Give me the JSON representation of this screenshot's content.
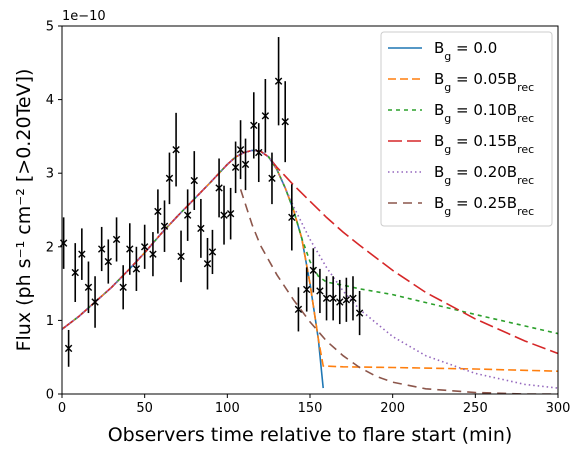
{
  "chart_data": {
    "type": "line",
    "title": "",
    "xlabel": "Observers time relative to flare start (min)",
    "ylabel": "Flux (ph s⁻¹ cm⁻² [>0.20TeV])",
    "y_scale_label": "1e−10",
    "xlim": [
      0,
      300
    ],
    "ylim": [
      0,
      5
    ],
    "x_ticks": [
      0,
      50,
      100,
      150,
      200,
      250,
      300
    ],
    "y_ticks": [
      0,
      1,
      2,
      3,
      4,
      5
    ],
    "x_tick_labels": [
      "0",
      "50",
      "100",
      "150",
      "200",
      "250",
      "300"
    ],
    "y_tick_labels": [
      "0",
      "1",
      "2",
      "3",
      "4",
      "5"
    ],
    "grid": false,
    "legend_position": "top-right",
    "series": [
      {
        "name": "B_g = 0.0",
        "legend_html": "B<tspan baseline-shift='sub' font-size='11'>g</tspan> = 0.0",
        "color": "#1f77b4",
        "dash": "solid",
        "x": [
          0,
          10,
          20,
          30,
          40,
          50,
          60,
          70,
          80,
          90,
          100,
          105,
          110,
          115,
          120,
          125,
          130,
          135,
          140,
          145,
          150,
          155,
          158
        ],
        "y": [
          0.88,
          1.05,
          1.25,
          1.45,
          1.68,
          1.92,
          2.18,
          2.42,
          2.65,
          2.88,
          3.12,
          3.22,
          3.28,
          3.31,
          3.3,
          3.22,
          3.05,
          2.8,
          2.5,
          2.12,
          1.5,
          0.75,
          0.08
        ]
      },
      {
        "name": "B_g = 0.05B_rec",
        "legend_html": "B<tspan baseline-shift='sub' font-size='11'>g</tspan> = 0.05B<tspan baseline-shift='sub' font-size='11'>rec</tspan>",
        "color": "#ff7f0e",
        "dash": "8,4",
        "x": [
          0,
          10,
          20,
          30,
          40,
          50,
          60,
          70,
          80,
          90,
          100,
          105,
          110,
          115,
          120,
          125,
          130,
          135,
          140,
          145,
          150,
          155,
          158,
          170,
          200,
          250,
          300
        ],
        "y": [
          0.88,
          1.05,
          1.25,
          1.45,
          1.68,
          1.92,
          2.18,
          2.42,
          2.65,
          2.88,
          3.12,
          3.22,
          3.28,
          3.31,
          3.3,
          3.22,
          3.05,
          2.8,
          2.5,
          2.12,
          1.5,
          0.75,
          0.38,
          0.37,
          0.36,
          0.34,
          0.31
        ]
      },
      {
        "name": "B_g = 0.10B_rec",
        "legend_html": "B<tspan baseline-shift='sub' font-size='11'>g</tspan> = 0.10B<tspan baseline-shift='sub' font-size='11'>rec</tspan>",
        "color": "#2ca02c",
        "dash": "4,4",
        "x": [
          0,
          10,
          20,
          30,
          40,
          50,
          60,
          70,
          80,
          90,
          100,
          105,
          110,
          115,
          120,
          125,
          130,
          135,
          140,
          145,
          150,
          155,
          160,
          170,
          180,
          200,
          250,
          300
        ],
        "y": [
          0.88,
          1.05,
          1.25,
          1.45,
          1.68,
          1.92,
          2.18,
          2.42,
          2.65,
          2.88,
          3.12,
          3.22,
          3.28,
          3.31,
          3.3,
          3.22,
          3.05,
          2.8,
          2.5,
          2.12,
          1.8,
          1.6,
          1.52,
          1.48,
          1.43,
          1.35,
          1.08,
          0.82
        ]
      },
      {
        "name": "B_g = 0.15B_rec",
        "legend_html": "B<tspan baseline-shift='sub' font-size='11'>g</tspan> = 0.15B<tspan baseline-shift='sub' font-size='11'>rec</tspan>",
        "color": "#d62728",
        "dash": "14,5",
        "x": [
          0,
          10,
          20,
          30,
          40,
          50,
          60,
          70,
          80,
          90,
          100,
          105,
          110,
          115,
          120,
          125,
          130,
          135,
          140,
          150,
          160,
          170,
          180,
          200,
          220,
          250,
          280,
          300
        ],
        "y": [
          0.88,
          1.05,
          1.25,
          1.45,
          1.68,
          1.92,
          2.18,
          2.42,
          2.65,
          2.88,
          3.12,
          3.22,
          3.28,
          3.31,
          3.3,
          3.22,
          3.08,
          2.96,
          2.84,
          2.62,
          2.4,
          2.2,
          2.02,
          1.68,
          1.38,
          1.02,
          0.72,
          0.55
        ]
      },
      {
        "name": "B_g = 0.20B_rec",
        "legend_html": "B<tspan baseline-shift='sub' font-size='11'>g</tspan> = 0.20B<tspan baseline-shift='sub' font-size='11'>rec</tspan>",
        "color": "#9467bd",
        "dash": "1.5,3",
        "x": [
          0,
          10,
          20,
          30,
          40,
          50,
          60,
          70,
          80,
          90,
          100,
          105,
          110,
          115,
          120,
          125,
          130,
          135,
          140,
          150,
          160,
          170,
          180,
          200,
          220,
          250,
          280,
          300
        ],
        "y": [
          0.88,
          1.05,
          1.25,
          1.45,
          1.68,
          1.92,
          2.18,
          2.42,
          2.65,
          2.88,
          3.12,
          3.22,
          3.28,
          3.31,
          3.3,
          3.22,
          3.05,
          2.8,
          2.55,
          2.1,
          1.72,
          1.4,
          1.15,
          0.78,
          0.52,
          0.28,
          0.13,
          0.08
        ]
      },
      {
        "name": "B_g = 0.25B_rec",
        "legend_html": "B<tspan baseline-shift='sub' font-size='11'>g</tspan> = 0.25B<tspan baseline-shift='sub' font-size='11'>rec</tspan>",
        "color": "#8c564b",
        "dash": "9,6",
        "x": [
          108,
          115,
          120,
          130,
          140,
          150,
          160,
          170,
          180,
          190,
          200,
          220,
          250,
          280,
          300
        ],
        "y": [
          2.78,
          2.3,
          2.02,
          1.62,
          1.28,
          0.98,
          0.72,
          0.52,
          0.36,
          0.24,
          0.16,
          0.07,
          0.02,
          0.0,
          0.0
        ]
      }
    ],
    "observations": {
      "name": "data",
      "color": "#000000",
      "x": [
        1,
        4,
        8,
        12,
        16,
        20,
        24,
        28,
        33,
        37,
        41,
        45,
        50,
        55,
        58,
        62,
        65,
        69,
        72,
        76,
        80,
        84,
        88,
        91,
        95,
        98,
        102,
        105,
        108,
        111,
        116,
        119,
        123,
        127,
        131,
        135,
        139,
        143,
        148,
        152,
        156,
        160,
        164,
        168,
        172,
        176,
        180
      ],
      "y": [
        2.05,
        0.62,
        1.65,
        1.9,
        1.45,
        1.25,
        1.97,
        1.8,
        2.1,
        1.45,
        1.97,
        1.7,
        2.0,
        1.9,
        2.48,
        2.28,
        2.93,
        3.32,
        1.87,
        2.43,
        2.9,
        2.25,
        1.77,
        1.93,
        2.8,
        2.43,
        2.45,
        3.08,
        3.32,
        3.12,
        3.65,
        3.28,
        3.78,
        2.93,
        4.25,
        3.7,
        2.4,
        1.15,
        1.42,
        1.68,
        1.4,
        1.3,
        1.3,
        1.25,
        1.28,
        1.3,
        1.1
      ],
      "err": [
        0.35,
        0.25,
        0.4,
        0.35,
        0.35,
        0.35,
        0.3,
        0.3,
        0.3,
        0.3,
        0.35,
        0.3,
        0.3,
        0.3,
        0.3,
        0.35,
        0.35,
        0.5,
        0.35,
        0.35,
        0.4,
        0.4,
        0.35,
        0.3,
        0.4,
        0.4,
        0.35,
        0.35,
        0.4,
        0.35,
        0.45,
        0.4,
        0.5,
        0.35,
        0.6,
        0.55,
        0.45,
        0.3,
        0.3,
        0.3,
        0.3,
        0.3,
        0.3,
        0.3,
        0.3,
        0.3,
        0.3
      ]
    }
  }
}
